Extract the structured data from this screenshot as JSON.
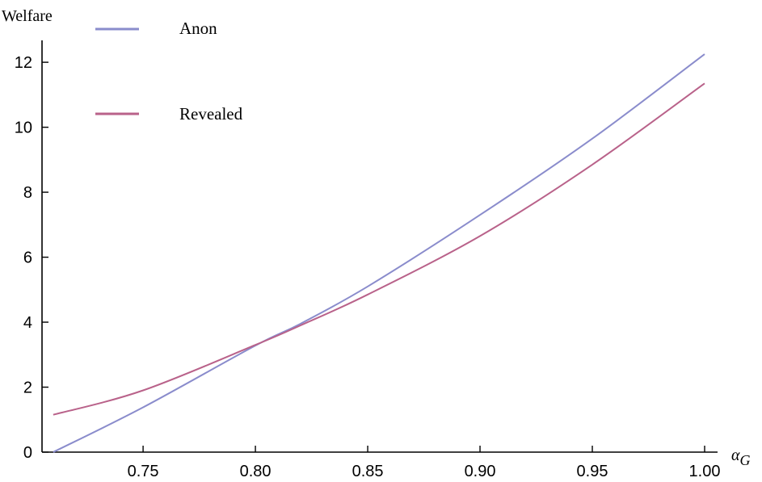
{
  "chart_data": {
    "type": "line",
    "ylabel": "Welfare",
    "xlabel": "α",
    "xlabel_subscript": "G",
    "xlim": [
      0.705,
      1.0
    ],
    "ylim": [
      0,
      12.5
    ],
    "xticks": [
      0.75,
      0.8,
      0.85,
      0.9,
      0.95,
      1.0
    ],
    "xtick_labels": [
      "0.75",
      "0.80",
      "0.85",
      "0.90",
      "0.95",
      "1.00"
    ],
    "yticks": [
      0,
      2,
      4,
      6,
      8,
      10,
      12
    ],
    "ytick_labels": [
      "0",
      "2",
      "4",
      "6",
      "8",
      "10",
      "12"
    ],
    "grid": false,
    "legend_placement": "top-left",
    "series": [
      {
        "name": "Anon",
        "color": "#8a8ccc",
        "x": [
          0.71,
          0.75,
          0.8,
          0.82,
          0.85,
          0.9,
          0.95,
          1.0
        ],
        "y": [
          0.0,
          1.38,
          3.28,
          3.95,
          5.1,
          7.3,
          9.65,
          12.25
        ]
      },
      {
        "name": "Revealed",
        "color": "#b9628a",
        "x": [
          0.71,
          0.75,
          0.8,
          0.82,
          0.85,
          0.9,
          0.95,
          1.0
        ],
        "y": [
          1.15,
          1.9,
          3.3,
          3.9,
          4.85,
          6.65,
          8.85,
          11.35
        ]
      }
    ]
  }
}
